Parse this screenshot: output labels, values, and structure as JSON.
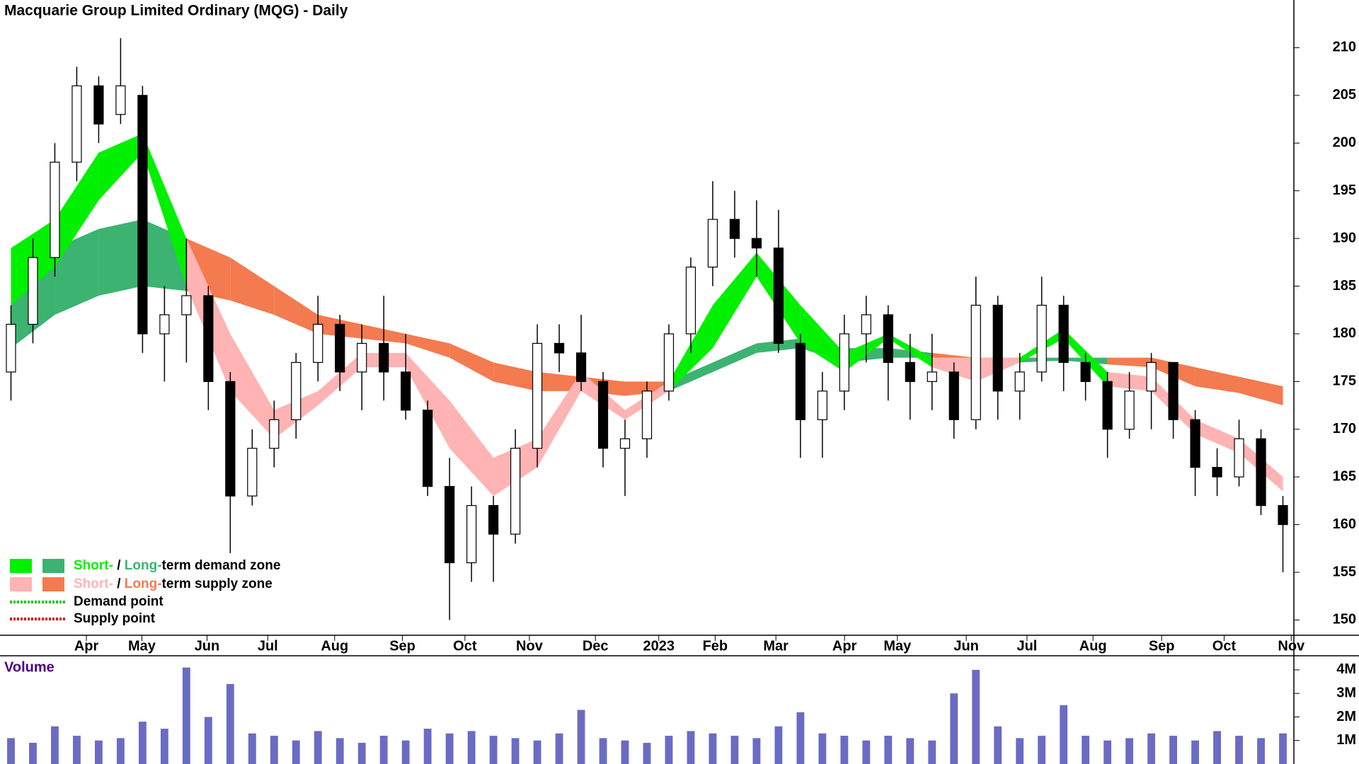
{
  "chart_data": {
    "type": "candlestick",
    "title": "Macquarie Group Limited Ordinary (MQG) - Daily",
    "xlim": [
      0,
      59
    ],
    "xticks": [
      {
        "value": 3.94,
        "label": "Apr"
      },
      {
        "value": 6.47,
        "label": "May"
      },
      {
        "value": 9.44,
        "label": "Jun"
      },
      {
        "value": 12.21,
        "label": "Jul"
      },
      {
        "value": 15.26,
        "label": "Aug"
      },
      {
        "value": 18.35,
        "label": "Sep"
      },
      {
        "value": 21.2,
        "label": "Oct"
      },
      {
        "value": 24.14,
        "label": "Nov"
      },
      {
        "value": 27.15,
        "label": "Dec"
      },
      {
        "value": 30.04,
        "label": "2023"
      },
      {
        "value": 32.61,
        "label": "Feb"
      },
      {
        "value": 35.38,
        "label": "Mar"
      },
      {
        "value": 38.51,
        "label": "Apr"
      },
      {
        "value": 40.92,
        "label": "May"
      },
      {
        "value": 44.06,
        "label": "Jun"
      },
      {
        "value": 46.83,
        "label": "Jul"
      },
      {
        "value": 49.84,
        "label": "Aug"
      },
      {
        "value": 52.97,
        "label": "Sep"
      },
      {
        "value": 55.82,
        "label": "Oct"
      },
      {
        "value": 58.88,
        "label": "Nov"
      }
    ],
    "ylim": [
      148.4,
      215
    ],
    "yticks": [
      150,
      155,
      160,
      165,
      170,
      175,
      180,
      185,
      190,
      195,
      200,
      205,
      210
    ],
    "candle_colors": {
      "up": "#ffffff",
      "down": "#000000",
      "outline": "#000000"
    },
    "ohlc": [
      [
        176,
        183,
        173,
        181
      ],
      [
        181,
        190,
        179,
        188
      ],
      [
        188,
        200,
        186,
        198
      ],
      [
        198,
        208,
        196,
        206
      ],
      [
        206,
        207,
        200,
        202
      ],
      [
        203,
        211,
        202,
        206
      ],
      [
        205,
        206,
        178,
        180
      ],
      [
        180,
        185,
        175,
        182
      ],
      [
        182,
        190,
        177,
        184
      ],
      [
        184,
        185,
        172,
        175
      ],
      [
        175,
        176,
        157,
        163
      ],
      [
        163,
        170,
        162,
        168
      ],
      [
        168,
        173,
        166,
        171
      ],
      [
        171,
        178,
        169,
        177
      ],
      [
        177,
        184,
        175,
        181
      ],
      [
        181,
        182,
        174,
        176
      ],
      [
        176,
        181,
        172,
        179
      ],
      [
        179,
        184,
        173,
        176
      ],
      [
        176,
        180,
        171,
        172
      ],
      [
        172,
        173,
        163,
        164
      ],
      [
        164,
        167,
        150,
        156
      ],
      [
        156,
        164,
        154,
        162
      ],
      [
        162,
        163,
        154,
        159
      ],
      [
        159,
        170,
        158,
        168
      ],
      [
        168,
        181,
        166,
        179
      ],
      [
        179,
        181,
        176,
        178
      ],
      [
        178,
        182,
        174,
        175
      ],
      [
        175,
        176,
        166,
        168
      ],
      [
        168,
        171,
        163,
        169
      ],
      [
        169,
        175,
        167,
        174
      ],
      [
        174,
        181,
        173,
        180
      ],
      [
        180,
        188,
        178,
        187
      ],
      [
        187,
        196,
        185,
        192
      ],
      [
        192,
        195,
        188,
        190
      ],
      [
        190,
        194,
        186,
        189
      ],
      [
        189,
        193,
        178,
        179
      ],
      [
        179,
        180,
        167,
        171
      ],
      [
        171,
        176,
        167,
        174
      ],
      [
        174,
        182,
        172,
        180
      ],
      [
        180,
        184,
        177,
        182
      ],
      [
        182,
        183,
        173,
        177
      ],
      [
        177,
        180,
        171,
        175
      ],
      [
        175,
        180,
        172,
        176
      ],
      [
        176,
        177,
        169,
        171
      ],
      [
        171,
        186,
        170,
        183
      ],
      [
        183,
        184,
        171,
        174
      ],
      [
        174,
        178,
        171,
        176
      ],
      [
        176,
        186,
        175,
        183
      ],
      [
        183,
        184,
        174,
        177
      ],
      [
        177,
        178,
        173,
        175
      ],
      [
        175,
        176,
        167,
        170
      ],
      [
        170,
        176,
        169,
        174
      ],
      [
        174,
        178,
        170,
        177
      ],
      [
        177,
        177,
        169,
        171
      ],
      [
        171,
        172,
        163,
        166
      ],
      [
        166,
        168,
        163,
        165
      ],
      [
        165,
        171,
        164,
        169
      ],
      [
        169,
        170,
        161,
        162
      ],
      [
        162,
        163,
        155,
        160
      ]
    ],
    "zones": {
      "x": [
        0,
        2,
        4,
        6,
        8,
        10,
        12,
        14,
        16,
        18,
        20,
        22,
        24,
        26,
        28,
        30,
        32,
        34,
        36,
        38,
        40,
        42,
        44,
        46,
        48,
        50,
        52,
        54,
        56,
        58
      ],
      "short": [
        [
          189,
          183
        ],
        [
          192,
          187
        ],
        [
          199,
          194
        ],
        [
          201,
          199
        ],
        [
          190,
          185
        ],
        [
          180,
          174
        ],
        [
          172,
          169
        ],
        [
          174,
          172.5
        ],
        [
          178,
          176.5
        ],
        [
          178,
          176.5
        ],
        [
          173,
          168
        ],
        [
          167,
          163
        ],
        [
          169,
          166
        ],
        [
          176,
          174
        ],
        [
          172,
          171
        ],
        [
          175,
          174
        ],
        [
          183,
          178.5
        ],
        [
          188.5,
          186
        ],
        [
          183,
          179
        ],
        [
          178,
          176
        ],
        [
          180,
          179.5
        ],
        [
          177.5,
          176.5
        ],
        [
          177.5,
          175
        ],
        [
          177.5,
          177
        ],
        [
          180.5,
          179.5
        ],
        [
          176,
          174.5
        ],
        [
          175.5,
          174
        ],
        [
          171,
          169.5
        ],
        [
          169,
          167.5
        ],
        [
          165,
          163.5
        ]
      ],
      "long": [
        [
          187,
          178.5
        ],
        [
          189,
          182
        ],
        [
          191,
          184
        ],
        [
          192,
          185
        ],
        [
          190,
          184.5
        ],
        [
          188,
          183.5
        ],
        [
          185,
          182
        ],
        [
          182,
          180
        ],
        [
          181,
          179.5
        ],
        [
          180,
          179
        ],
        [
          179,
          177.5
        ],
        [
          177,
          175
        ],
        [
          176,
          174
        ],
        [
          175.5,
          174
        ],
        [
          175,
          173.5
        ],
        [
          175,
          174
        ],
        [
          177,
          176
        ],
        [
          179,
          178
        ],
        [
          179.5,
          178.5
        ],
        [
          178.5,
          177
        ],
        [
          178.5,
          177.5
        ],
        [
          178,
          177.5
        ],
        [
          177.5,
          177
        ],
        [
          177.5,
          177
        ],
        [
          177.5,
          177.2
        ],
        [
          177.5,
          176.8
        ],
        [
          177.5,
          176.5
        ],
        [
          176.5,
          174.5
        ],
        [
          175.5,
          173.8
        ],
        [
          174.5,
          172.5
        ]
      ],
      "colors": {
        "short_demand": "#00f000",
        "long_demand": "#3cb371",
        "short_supply": "#ffb3b3",
        "long_supply": "#f47a50"
      }
    },
    "volume": {
      "title": "Volume",
      "color": "#6b6bc4",
      "ylim": [
        0,
        4600000
      ],
      "yticks": [
        {
          "value": 1000000,
          "label": "1M"
        },
        {
          "value": 2000000,
          "label": "2M"
        },
        {
          "value": 3000000,
          "label": "3M"
        },
        {
          "value": 4000000,
          "label": "4M"
        }
      ],
      "values": [
        1100000,
        900000,
        1600000,
        1200000,
        1000000,
        1100000,
        1800000,
        1500000,
        4100000,
        2000000,
        3400000,
        1300000,
        1200000,
        1000000,
        1400000,
        1100000,
        900000,
        1200000,
        1000000,
        1500000,
        1300000,
        1400000,
        1200000,
        1100000,
        1000000,
        1300000,
        2300000,
        1100000,
        1000000,
        900000,
        1200000,
        1400000,
        1300000,
        1200000,
        1100000,
        1600000,
        2200000,
        1300000,
        1200000,
        1000000,
        1200000,
        1100000,
        1000000,
        3000000,
        4000000,
        1600000,
        1100000,
        1200000,
        2500000,
        1200000,
        1000000,
        1100000,
        1300000,
        1200000,
        1000000,
        1400000,
        1200000,
        1100000,
        1300000
      ]
    },
    "legend": {
      "demand_zone": [
        "Short-",
        " / ",
        "Long-",
        "term demand zone"
      ],
      "supply_zone": [
        "Short-",
        " / ",
        "Long-",
        "term supply zone"
      ],
      "demand_point": "Demand point",
      "supply_point": "Supply point",
      "point_colors": {
        "demand": "#00cc00",
        "supply": "#dd0000"
      }
    }
  }
}
